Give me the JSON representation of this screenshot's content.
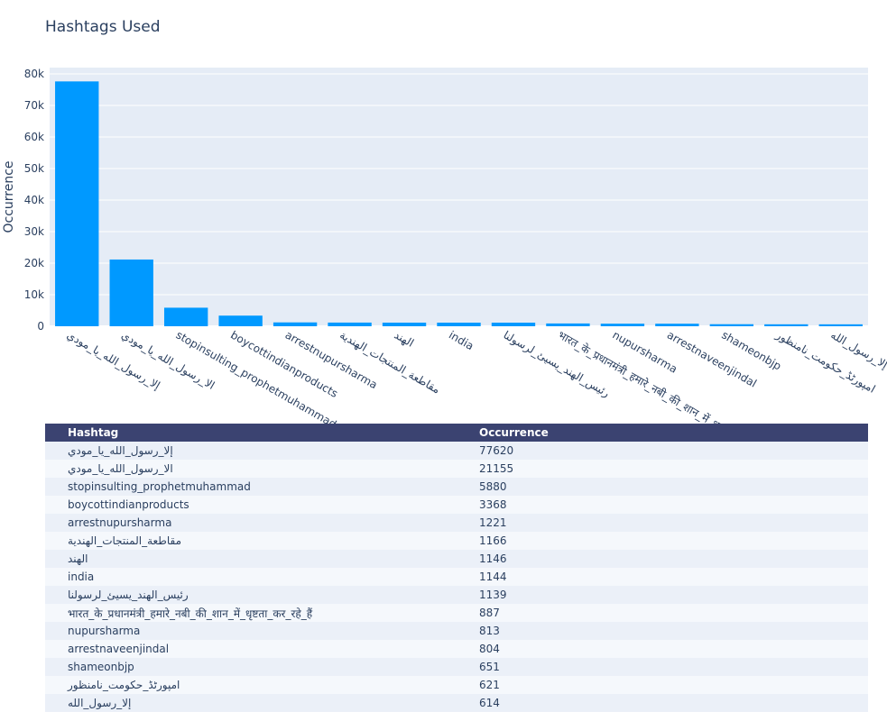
{
  "chart_data": {
    "type": "bar",
    "title": "Hashtags Used",
    "xlabel": "",
    "ylabel": "Occurrence",
    "ylim": [
      0,
      82000
    ],
    "yticks": [
      0,
      10000,
      20000,
      30000,
      40000,
      50000,
      60000,
      70000,
      80000
    ],
    "ytick_labels": [
      "0",
      "10k",
      "20k",
      "30k",
      "40k",
      "50k",
      "60k",
      "70k",
      "80k"
    ],
    "grid": true,
    "bar_color": "#0099ff",
    "plot_background": "#e5ecf6",
    "categories": [
      "إلا_رسول_الله_يا_مودي",
      "الا_رسول_الله_يا_مودي",
      "stopinsulting_prophetmuhammad",
      "boycottindianproducts",
      "arrestnupursharma",
      "مقاطعة_المنتجات_الهندية",
      "الهند",
      "india",
      "رئيس_الهند_يسيئ_لرسولنا",
      "भारत_के_प्रधानमंत्री_हमारे_नबी_की_शान_में_धृष्टता_कर_रहे_हैं",
      "nupursharma",
      "arrestnaveenjindal",
      "shameonbjp",
      "امپورٹڈ_حکومت_نامنظور",
      "إلا_رسول_الله"
    ],
    "values": [
      77620,
      21155,
      5880,
      3368,
      1221,
      1166,
      1146,
      1144,
      1139,
      887,
      813,
      804,
      651,
      621,
      614
    ]
  },
  "table": {
    "headers": [
      "Hashtag",
      "Occurrence"
    ],
    "header_color": "#3b4371",
    "row_colors": [
      "#ebf0f8",
      "#f5f8fc"
    ],
    "rows": [
      [
        "إلا_رسول_الله_يا_مودي",
        "77620"
      ],
      [
        "الا_رسول_الله_يا_مودي",
        "21155"
      ],
      [
        "stopinsulting_prophetmuhammad",
        "5880"
      ],
      [
        "boycottindianproducts",
        "3368"
      ],
      [
        "arrestnupursharma",
        "1221"
      ],
      [
        "مقاطعة_المنتجات_الهندية",
        "1166"
      ],
      [
        "الهند",
        "1146"
      ],
      [
        "india",
        "1144"
      ],
      [
        "رئيس_الهند_يسيئ_لرسولنا",
        "1139"
      ],
      [
        "भारत_के_प्रधानमंत्री_हमारे_नबी_की_शान_में_धृष्टता_कर_रहे_हैं",
        "887"
      ],
      [
        "nupursharma",
        "813"
      ],
      [
        "arrestnaveenjindal",
        "804"
      ],
      [
        "shameonbjp",
        "651"
      ],
      [
        "امپورٹڈ_حکومت_نامنظور",
        "621"
      ],
      [
        "إلا_رسول_الله",
        "614"
      ]
    ]
  }
}
